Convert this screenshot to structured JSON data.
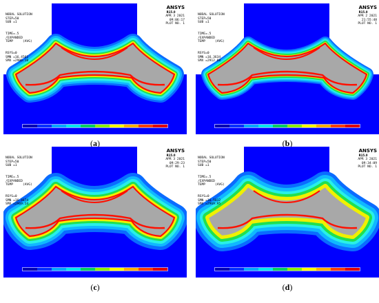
{
  "panels": [
    {
      "caption_letter": "a",
      "info": [
        "NODAL SOLUTION",
        "STEP=50",
        "SUB =1",
        "TIME=.5",
        "/EXPANDED",
        "TEMP     (AVG)",
        "RSYS=0",
        "SMN =16.4561",
        "SMX =2906.18"
      ],
      "brand": "ANSYS",
      "release": "R15.0",
      "meta": [
        "APR  3 2021",
        "09:06:17",
        "PLOT NO.   1"
      ]
    },
    {
      "caption_letter": "b",
      "info": [
        "NODAL SOLUTION",
        "STEP=50",
        "SUB =1",
        "TIME=.5",
        "/EXPANDED",
        "TEMP     (AVG)",
        "RSYS=0",
        "SMN =16.3634",
        "SMX =2912.08"
      ],
      "brand": "ANSYS",
      "release": "R15.0",
      "meta": [
        "APR  2 2021",
        "21:55:48",
        "PLOT NO.   1"
      ]
    },
    {
      "caption_letter": "c",
      "info": [
        "NODAL SOLUTION",
        "STEP=50",
        "SUB =1",
        "TIME=.5",
        "/EXPANDED",
        "TEMP     (AVG)",
        "RSYS=0",
        "SMN =16.4874",
        "SMX =2969.14"
      ],
      "brand": "ANSYS",
      "release": "R15.0",
      "meta": [
        "APR  3 2021",
        "09:29:23",
        "PLOT NO.   1"
      ]
    },
    {
      "caption_letter": "d",
      "info": [
        "NODAL SOLUTION",
        "STEP=50",
        "SUB =1",
        "TIME=.5",
        "/EXPANDED",
        "TEMP     (AVG)",
        "RSYS=0",
        "SMN =16.5012",
        "SMX =2969.95"
      ],
      "brand": "ANSYS",
      "release": "R15.0",
      "meta": [
        "APR  3 2021",
        "09:34:09",
        "PLOT NO.   1"
      ]
    }
  ],
  "legend_colors": [
    "#0000b4",
    "#0030ff",
    "#00a8ff",
    "#00e8f0",
    "#00d060",
    "#8cf000",
    "#ffff00",
    "#ffb000",
    "#ff4000",
    "#e00000"
  ],
  "field_colors": {
    "background": "#0000ff",
    "mid_blue": "#0a6cff",
    "light_blue": "#10b8ff",
    "cyan": "#28f0e8",
    "green": "#20e050",
    "yellow": "#f0f000",
    "red": "#ff1000",
    "gray": "#a8a8a8"
  }
}
